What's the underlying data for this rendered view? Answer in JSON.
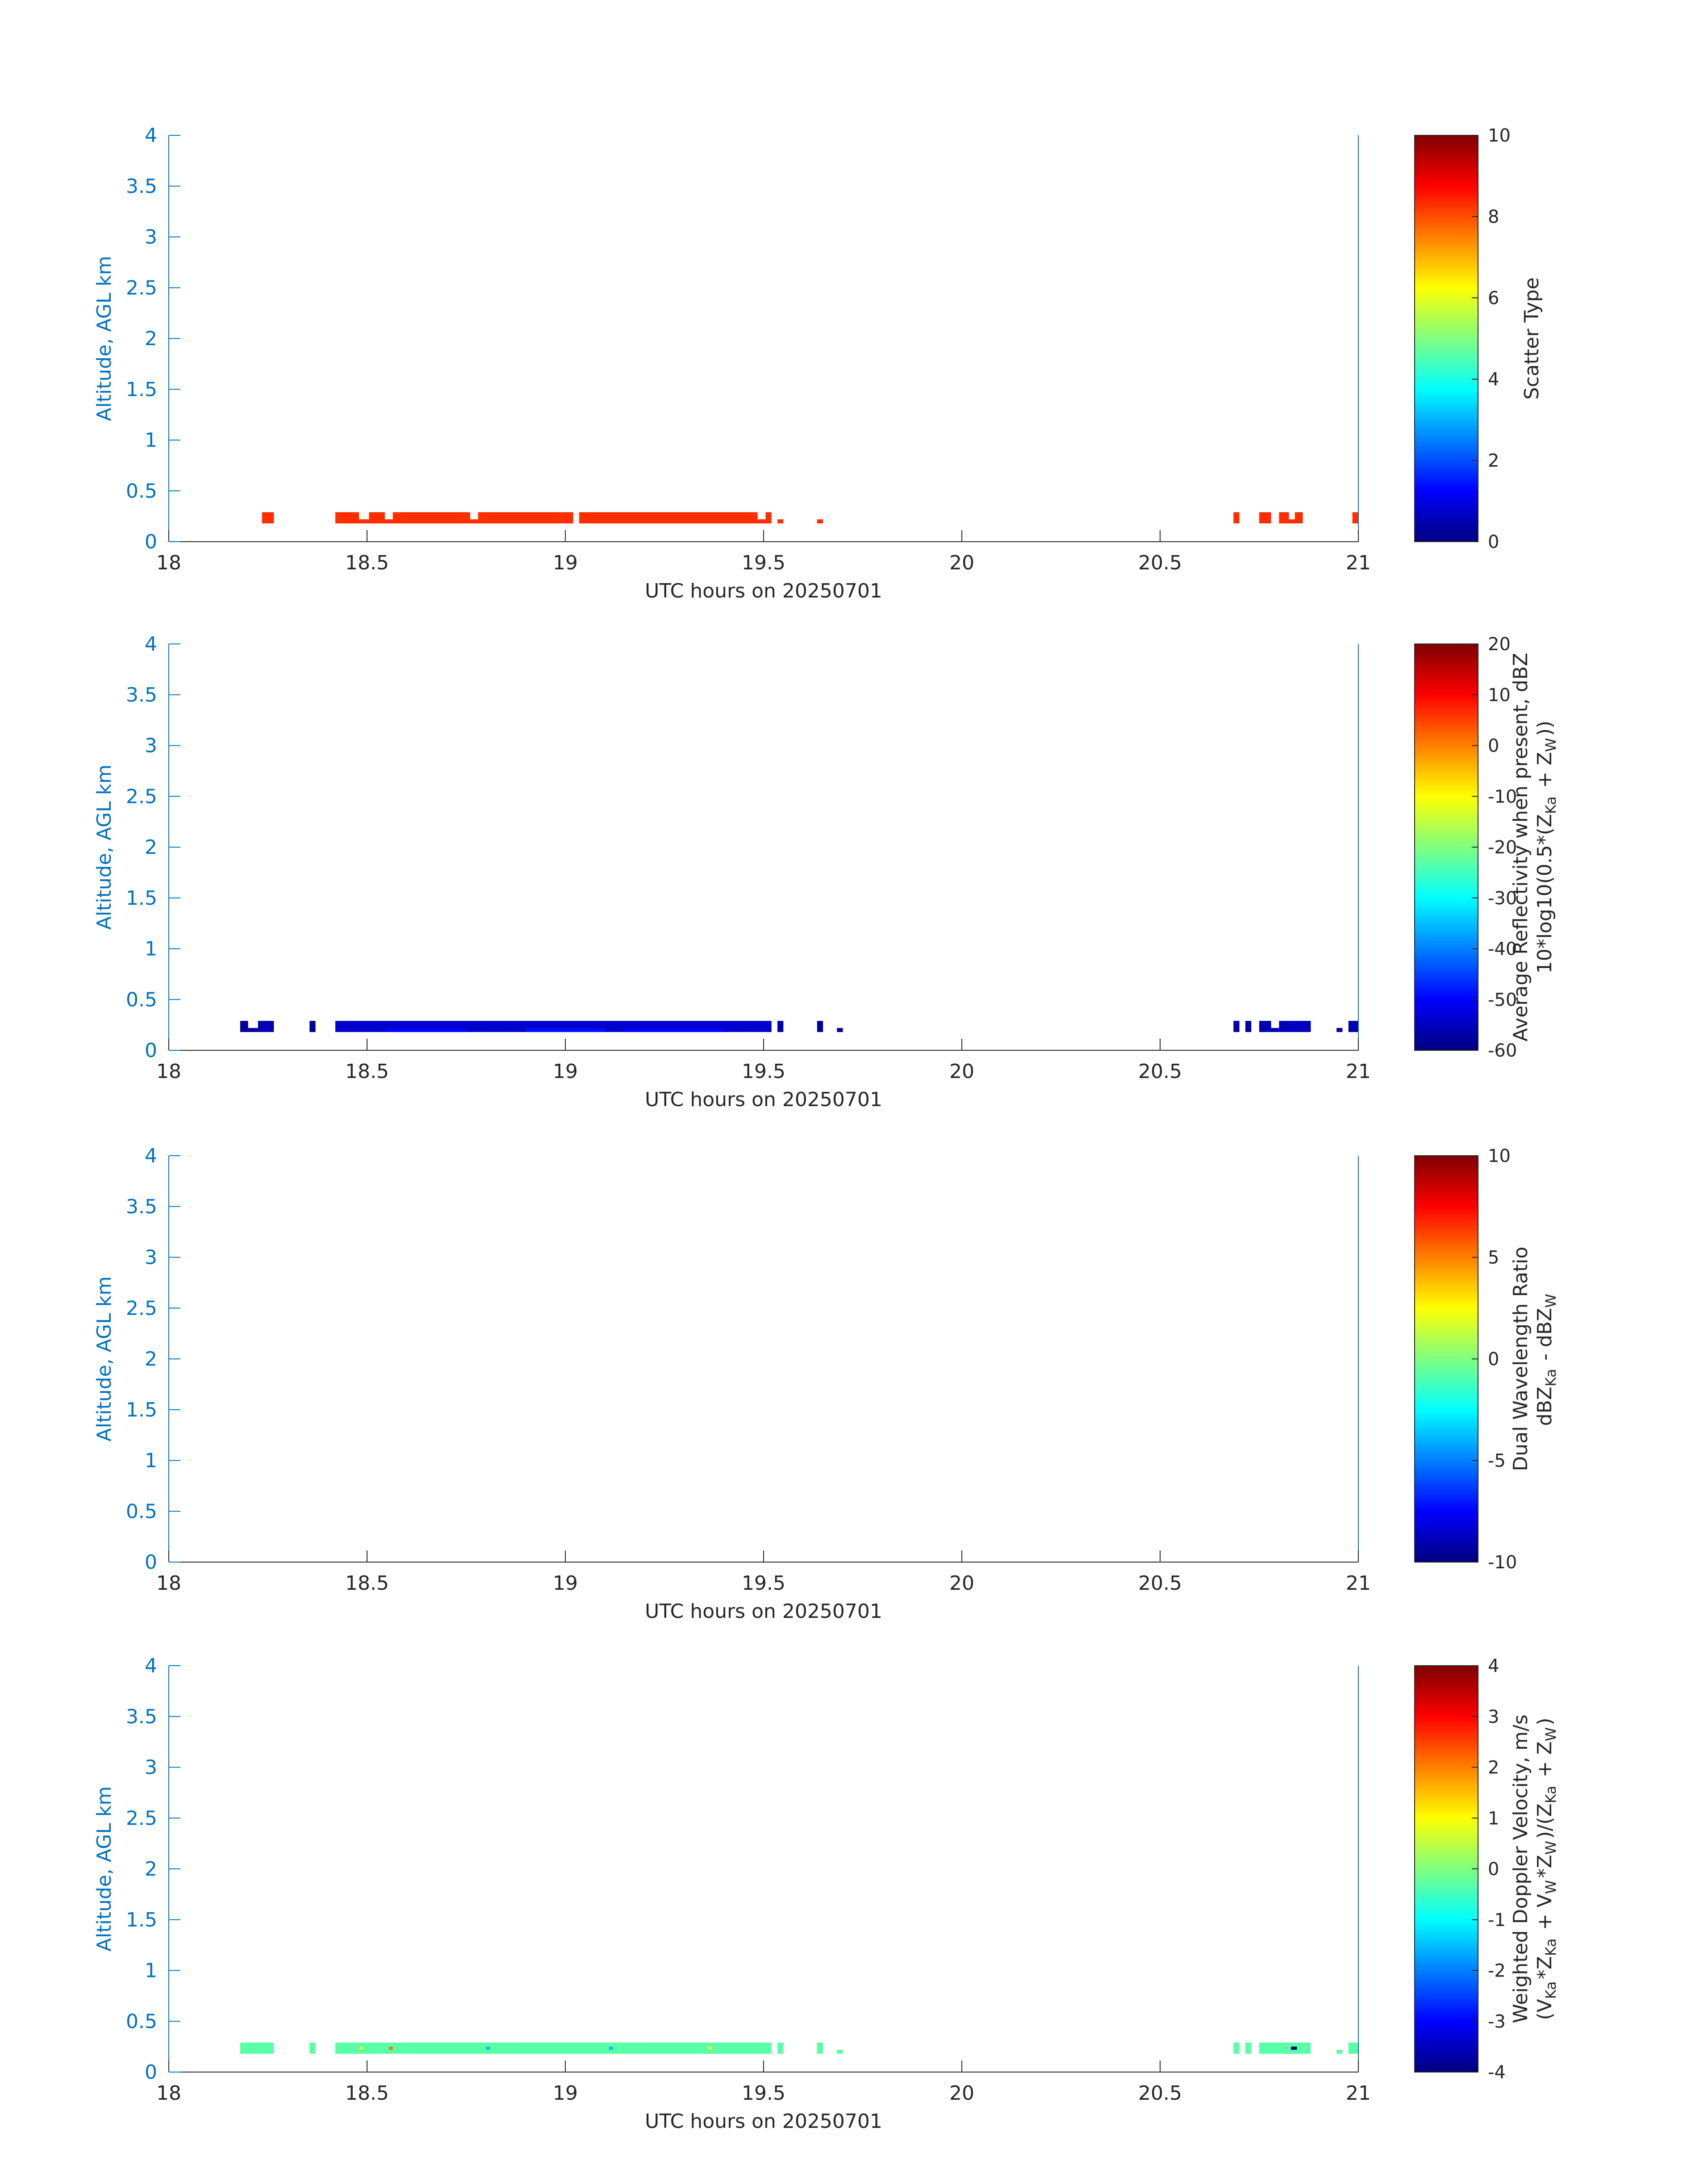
{
  "figure": {
    "colors": {
      "axis": "#0072BD",
      "text": "#262626",
      "frame": "#262626",
      "background": "#ffffff"
    },
    "colormap": "jet"
  },
  "chart_data": [
    {
      "type": "heatmap",
      "xlabel": "UTC hours on 20250701",
      "ylabel": "Altitude, AGL km",
      "xlim": [
        18,
        21
      ],
      "ylim": [
        0,
        4
      ],
      "xticks": [
        "18",
        "18.5",
        "19",
        "19.5",
        "20",
        "20.5",
        "21"
      ],
      "yticks": [
        "0",
        "0.5",
        "1",
        "1.5",
        "2",
        "2.5",
        "3",
        "3.5",
        "4"
      ],
      "colorbar": {
        "label_lines": [
          "Scatter Type"
        ],
        "range": [
          0,
          10
        ],
        "ticks": [
          "0",
          "2",
          "4",
          "6",
          "8",
          "10"
        ]
      },
      "grid": false,
      "cells": [
        [
          18.235,
          18.265,
          0.18,
          0.29,
          8.3
        ],
        [
          18.42,
          18.48,
          0.18,
          0.29,
          8.3
        ],
        [
          18.48,
          18.505,
          0.18,
          0.22,
          8.3
        ],
        [
          18.505,
          18.545,
          0.18,
          0.29,
          8.3
        ],
        [
          18.545,
          18.565,
          0.18,
          0.22,
          8.3
        ],
        [
          18.565,
          18.76,
          0.18,
          0.29,
          8.3
        ],
        [
          18.76,
          18.78,
          0.18,
          0.22,
          8.3
        ],
        [
          18.78,
          19.02,
          0.18,
          0.29,
          8.3
        ],
        [
          19.035,
          19.485,
          0.18,
          0.29,
          8.3
        ],
        [
          19.485,
          19.505,
          0.18,
          0.22,
          8.3
        ],
        [
          19.505,
          19.52,
          0.18,
          0.29,
          8.3
        ],
        [
          19.535,
          19.55,
          0.18,
          0.22,
          8.3
        ],
        [
          19.635,
          19.65,
          0.18,
          0.22,
          8.3
        ],
        [
          20.685,
          20.7,
          0.18,
          0.29,
          8.3
        ],
        [
          20.75,
          20.78,
          0.18,
          0.29,
          8.3
        ],
        [
          20.8,
          20.825,
          0.18,
          0.29,
          8.3
        ],
        [
          20.825,
          20.84,
          0.18,
          0.22,
          8.3
        ],
        [
          20.84,
          20.86,
          0.18,
          0.29,
          8.3
        ],
        [
          20.985,
          21.0,
          0.18,
          0.29,
          8.3
        ]
      ]
    },
    {
      "type": "heatmap",
      "xlabel": "UTC hours on 20250701",
      "ylabel": "Altitude, AGL km",
      "xlim": [
        18,
        21
      ],
      "ylim": [
        0,
        4
      ],
      "xticks": [
        "18",
        "18.5",
        "19",
        "19.5",
        "20",
        "20.5",
        "21"
      ],
      "yticks": [
        "0",
        "0.5",
        "1",
        "1.5",
        "2",
        "2.5",
        "3",
        "3.5",
        "4"
      ],
      "colorbar": {
        "label_lines": [
          "Average Reflectivity when present, dBZ",
          "10*log10(0.5*(Z_Ka + Z_W))"
        ],
        "range": [
          -60,
          20
        ],
        "ticks": [
          "-60",
          "-50",
          "-40",
          "-30",
          "-20",
          "-10",
          "0",
          "10",
          "20"
        ]
      },
      "grid": false,
      "cells": [
        [
          18.18,
          18.2,
          0.18,
          0.29,
          -58
        ],
        [
          18.2,
          18.225,
          0.18,
          0.22,
          -58
        ],
        [
          18.225,
          18.265,
          0.18,
          0.29,
          -56
        ],
        [
          18.355,
          18.37,
          0.18,
          0.29,
          -58
        ],
        [
          18.42,
          19.52,
          0.18,
          0.29,
          -54
        ],
        [
          18.55,
          18.75,
          0.18,
          0.22,
          -50
        ],
        [
          18.9,
          19.1,
          0.18,
          0.22,
          -49
        ],
        [
          19.15,
          19.4,
          0.18,
          0.22,
          -50
        ],
        [
          19.535,
          19.55,
          0.18,
          0.29,
          -56
        ],
        [
          19.635,
          19.65,
          0.18,
          0.29,
          -58
        ],
        [
          19.685,
          19.7,
          0.18,
          0.22,
          -58
        ],
        [
          20.685,
          20.7,
          0.18,
          0.29,
          -57
        ],
        [
          20.715,
          20.73,
          0.18,
          0.29,
          -57
        ],
        [
          20.75,
          20.78,
          0.18,
          0.29,
          -56
        ],
        [
          20.78,
          20.8,
          0.18,
          0.22,
          -56
        ],
        [
          20.8,
          20.88,
          0.18,
          0.29,
          -55
        ],
        [
          20.945,
          20.96,
          0.18,
          0.22,
          -58
        ],
        [
          20.975,
          21.0,
          0.18,
          0.29,
          -56
        ]
      ]
    },
    {
      "type": "heatmap",
      "xlabel": "UTC hours on 20250701",
      "ylabel": "Altitude, AGL km",
      "xlim": [
        18,
        21
      ],
      "ylim": [
        0,
        4
      ],
      "xticks": [
        "18",
        "18.5",
        "19",
        "19.5",
        "20",
        "20.5",
        "21"
      ],
      "yticks": [
        "0",
        "0.5",
        "1",
        "1.5",
        "2",
        "2.5",
        "3",
        "3.5",
        "4"
      ],
      "colorbar": {
        "label_lines": [
          "Dual Wavelength Ratio",
          "dBZ_Ka - dBZ_W"
        ],
        "range": [
          -10,
          10
        ],
        "ticks": [
          "-10",
          "-5",
          "0",
          "5",
          "10"
        ]
      },
      "grid": false,
      "cells": []
    },
    {
      "type": "heatmap",
      "xlabel": "UTC hours on 20250701",
      "ylabel": "Altitude, AGL km",
      "xlim": [
        18,
        21
      ],
      "ylim": [
        0,
        4
      ],
      "xticks": [
        "18",
        "18.5",
        "19",
        "19.5",
        "20",
        "20.5",
        "21"
      ],
      "yticks": [
        "0",
        "0.5",
        "1",
        "1.5",
        "2",
        "2.5",
        "3",
        "3.5",
        "4"
      ],
      "colorbar": {
        "label_lines": [
          "Weighted Doppler Velocity, m/s",
          "(V_Ka*Z_Ka + V_W*Z_W)/(Z_Ka + Z_W)"
        ],
        "range": [
          -4,
          4
        ],
        "ticks": [
          "-4",
          "-3",
          "-2",
          "-1",
          "0",
          "1",
          "2",
          "3",
          "4"
        ]
      },
      "grid": false,
      "cells": [
        [
          18.18,
          18.265,
          0.18,
          0.29,
          -0.3
        ],
        [
          18.355,
          18.37,
          0.18,
          0.29,
          -0.3
        ],
        [
          18.42,
          19.52,
          0.18,
          0.29,
          -0.3
        ],
        [
          18.48,
          18.49,
          0.22,
          0.25,
          0.9
        ],
        [
          18.555,
          18.565,
          0.22,
          0.25,
          2.1
        ],
        [
          18.8,
          18.81,
          0.22,
          0.25,
          -1.5
        ],
        [
          19.11,
          19.12,
          0.22,
          0.25,
          -1.5
        ],
        [
          19.36,
          19.37,
          0.22,
          0.25,
          0.9
        ],
        [
          19.535,
          19.55,
          0.18,
          0.29,
          -0.3
        ],
        [
          19.635,
          19.65,
          0.18,
          0.29,
          -0.3
        ],
        [
          19.685,
          19.7,
          0.18,
          0.22,
          -0.3
        ],
        [
          20.685,
          20.7,
          0.18,
          0.29,
          -0.3
        ],
        [
          20.715,
          20.73,
          0.18,
          0.29,
          -0.3
        ],
        [
          20.75,
          20.88,
          0.18,
          0.29,
          -0.3
        ],
        [
          20.83,
          20.845,
          0.22,
          0.25,
          -4
        ],
        [
          20.945,
          20.96,
          0.18,
          0.22,
          -0.3
        ],
        [
          20.975,
          21.0,
          0.18,
          0.29,
          -0.3
        ]
      ]
    }
  ]
}
